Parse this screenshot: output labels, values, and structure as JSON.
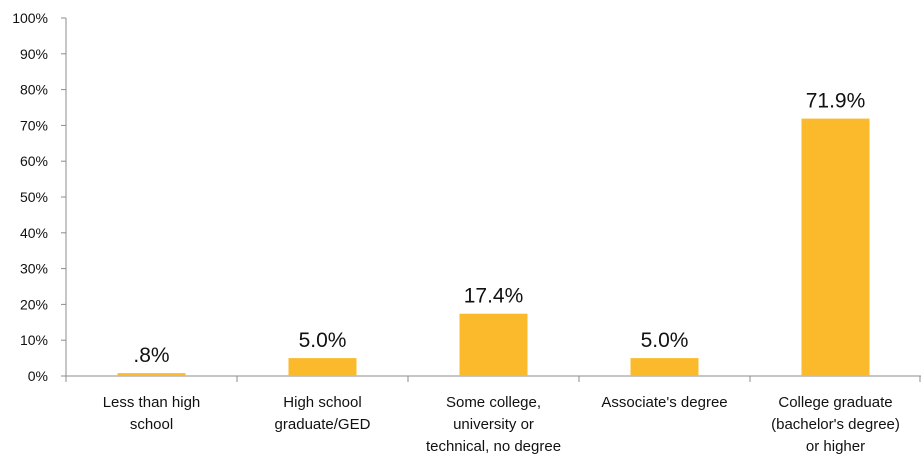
{
  "chart_data": {
    "type": "bar",
    "title": "",
    "xlabel": "",
    "ylabel": "",
    "ylim": [
      0,
      100
    ],
    "yticks": [
      "0%",
      "10%",
      "20%",
      "30%",
      "40%",
      "50%",
      "60%",
      "70%",
      "80%",
      "90%",
      "100%"
    ],
    "categories": [
      [
        "Less than high",
        "school"
      ],
      [
        "High school",
        "graduate/GED"
      ],
      [
        "Some college,",
        "university or",
        "technical, no degree"
      ],
      [
        "Associate's degree"
      ],
      [
        "College graduate",
        "(bachelor's degree)",
        "or higher"
      ]
    ],
    "values": [
      0.8,
      5.0,
      17.4,
      5.0,
      71.9
    ],
    "data_labels": [
      ".8%",
      "5.0%",
      "17.4%",
      "5.0%",
      "71.9%"
    ],
    "bar_color": "#FBBA2B",
    "axis_color": "#8C8C8C",
    "grid": false,
    "legend": "none"
  }
}
